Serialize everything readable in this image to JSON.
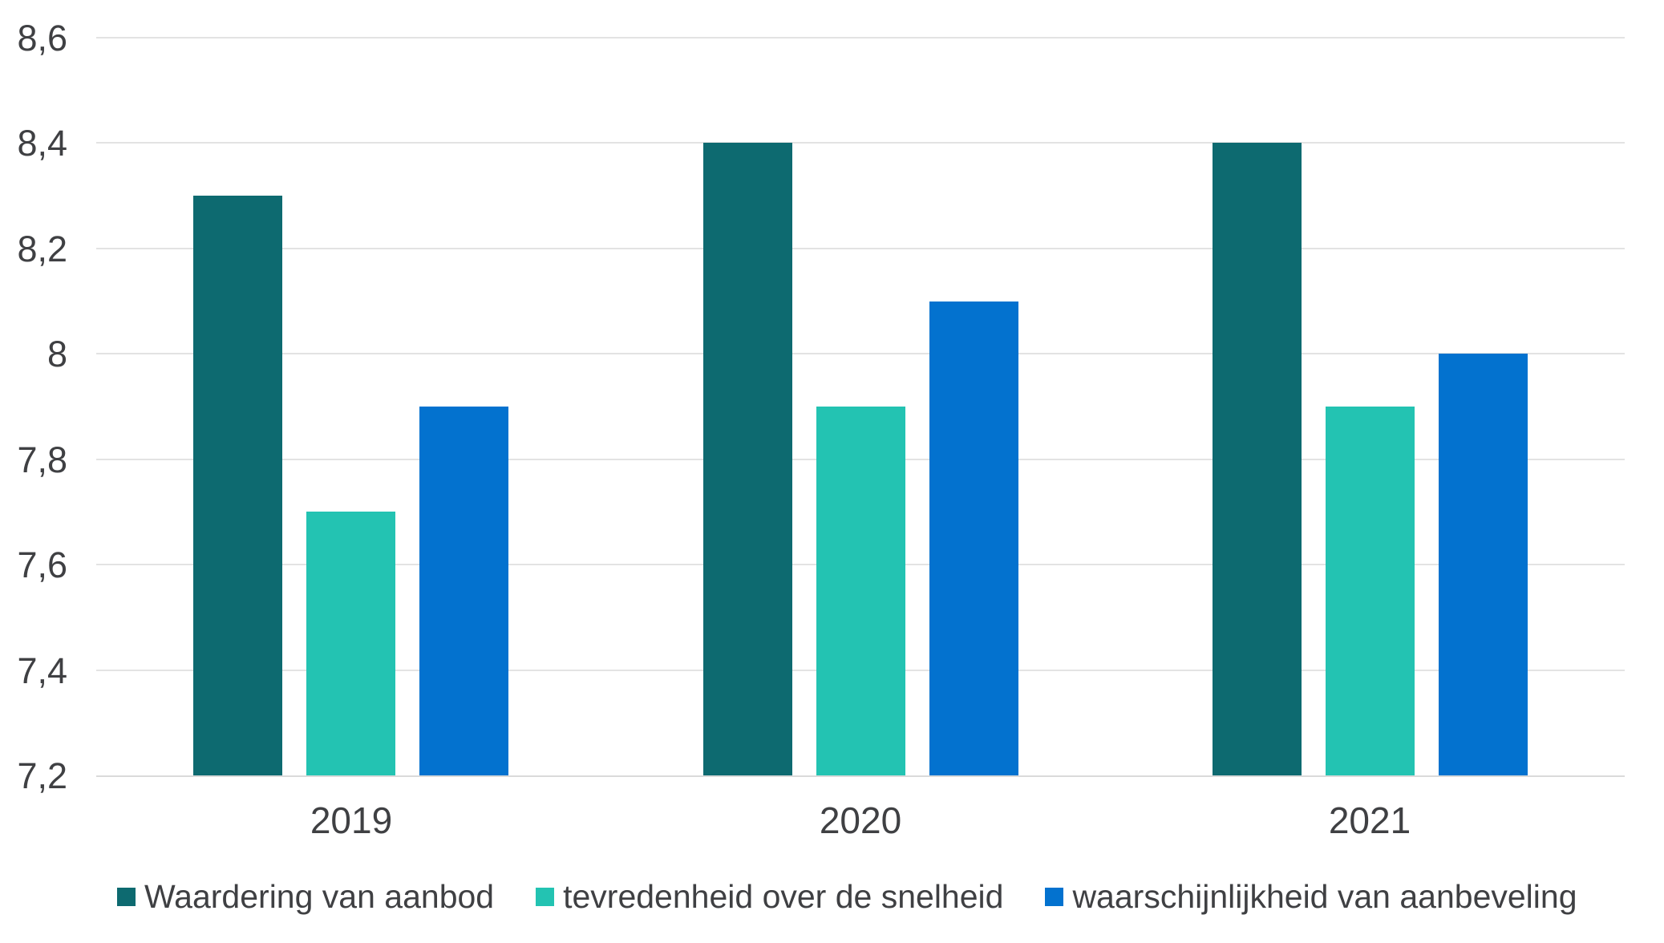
{
  "chart_data": {
    "type": "bar",
    "title": "",
    "xlabel": "",
    "ylabel": "",
    "categories": [
      "2019",
      "2020",
      "2021"
    ],
    "series": [
      {
        "name": "Waardering van aanbod",
        "color": "#0d6a70",
        "values": [
          8.3,
          8.4,
          8.4
        ]
      },
      {
        "name": "tevredenheid over de snelheid",
        "color": "#23c3b2",
        "values": [
          7.7,
          7.9,
          7.9
        ]
      },
      {
        "name": "waarschijnlijkheid van aanbeveling",
        "color": "#0372cf",
        "values": [
          7.9,
          8.1,
          8.0
        ]
      }
    ],
    "ylim": [
      7.2,
      8.6
    ],
    "ytick_step": 0.2,
    "ytick_labels": [
      "8,6",
      "8,4",
      "8,2",
      "8",
      "7,8",
      "7,6",
      "7,4",
      "7,2"
    ],
    "decimal_separator": ",",
    "grid": true,
    "legend_position": "bottom"
  },
  "colors": {
    "background": "#ffffff",
    "axis_text": "#3f4043",
    "gridline": "#e3e3e3",
    "baseline": "#dadada"
  }
}
